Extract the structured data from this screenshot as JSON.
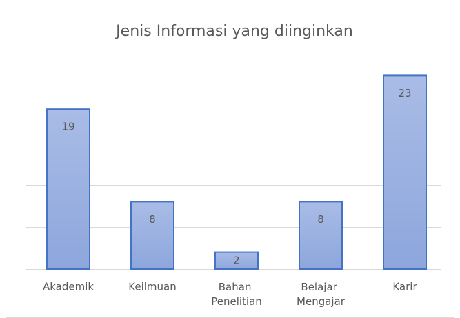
{
  "chart_data": {
    "type": "bar",
    "title": "Jenis Informasi yang diinginkan",
    "categories": [
      "Akademik",
      "Keilmuan",
      "Bahan Penelitian",
      "Belajar Mengajar",
      "Karir"
    ],
    "values": [
      19,
      8,
      2,
      8,
      23
    ],
    "color": "#4472c4",
    "ylim": [
      0,
      25
    ],
    "yticks": [
      0,
      5,
      10,
      15,
      20,
      25
    ],
    "grid": true
  }
}
